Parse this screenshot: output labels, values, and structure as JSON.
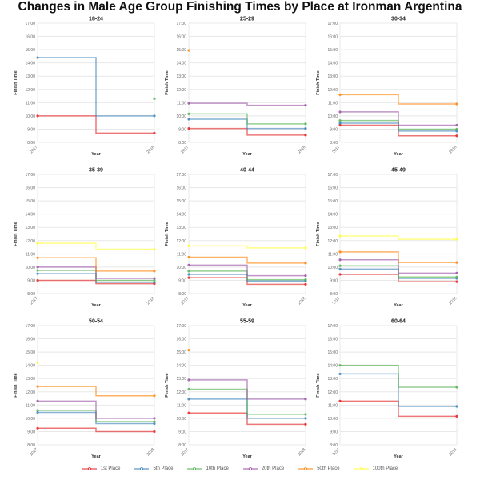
{
  "chart_data": {
    "type": "line",
    "title": "Changes in Male Age Group Finishing Times by Place at Ironman Argentina",
    "xlabel": "Year",
    "ylabel": "Finish Time",
    "x": [
      "2017",
      "2018"
    ],
    "ylim": [
      8,
      17
    ],
    "y_units": "hours",
    "yticks": [
      "8:00",
      "9:00",
      "10:00",
      "11:00",
      "12:00",
      "13:00",
      "14:00",
      "15:00",
      "16:00",
      "17:00"
    ],
    "step": "middle",
    "grid": true,
    "legend_placement": "bottom",
    "series_names": [
      "1st Place",
      "5th Place",
      "10th Place",
      "20th Place",
      "50th Place",
      "100th Place"
    ],
    "colors": [
      "#e41a1c",
      "#377eb8",
      "#4daf4a",
      "#984ea3",
      "#ff7f00",
      "#ffff33"
    ],
    "panels": [
      {
        "title": "18-24",
        "series": [
          [
            10.0,
            8.7
          ],
          [
            14.4,
            10.0
          ],
          [
            null,
            11.3
          ],
          [
            null,
            null
          ],
          [
            null,
            null
          ],
          [
            null,
            null
          ]
        ]
      },
      {
        "title": "25-29",
        "series": [
          [
            9.05,
            8.55
          ],
          [
            9.75,
            9.05
          ],
          [
            10.15,
            9.4
          ],
          [
            10.95,
            10.8
          ],
          [
            14.95,
            null
          ],
          [
            null,
            null
          ]
        ]
      },
      {
        "title": "30-34",
        "series": [
          [
            9.3,
            8.5
          ],
          [
            9.45,
            8.85
          ],
          [
            9.65,
            9.0
          ],
          [
            10.3,
            9.3
          ],
          [
            11.6,
            10.9
          ],
          [
            null,
            null
          ]
        ]
      },
      {
        "title": "35-39",
        "series": [
          [
            9.0,
            8.75
          ],
          [
            9.5,
            8.85
          ],
          [
            9.75,
            9.0
          ],
          [
            10.0,
            9.15
          ],
          [
            10.7,
            9.7
          ],
          [
            11.8,
            11.35
          ]
        ]
      },
      {
        "title": "40-44",
        "series": [
          [
            9.2,
            8.7
          ],
          [
            9.45,
            8.95
          ],
          [
            9.7,
            9.05
          ],
          [
            10.15,
            9.35
          ],
          [
            10.75,
            10.3
          ],
          [
            11.6,
            11.45
          ]
        ]
      },
      {
        "title": "45-49",
        "series": [
          [
            9.45,
            8.9
          ],
          [
            9.85,
            9.15
          ],
          [
            10.1,
            9.25
          ],
          [
            10.55,
            9.55
          ],
          [
            11.15,
            10.35
          ],
          [
            12.35,
            12.1
          ]
        ]
      },
      {
        "title": "50-54",
        "series": [
          [
            9.25,
            9.0
          ],
          [
            10.45,
            9.6
          ],
          [
            10.6,
            9.75
          ],
          [
            11.3,
            10.0
          ],
          [
            12.4,
            11.7
          ],
          [
            14.2,
            null
          ]
        ]
      },
      {
        "title": "55-59",
        "series": [
          [
            10.4,
            9.55
          ],
          [
            11.45,
            10.0
          ],
          [
            12.2,
            10.3
          ],
          [
            12.9,
            11.45
          ],
          [
            15.15,
            null
          ],
          [
            null,
            null
          ]
        ]
      },
      {
        "title": "60-64",
        "series": [
          [
            11.3,
            10.15
          ],
          [
            13.35,
            10.9
          ],
          [
            14.0,
            12.35
          ],
          [
            null,
            null
          ],
          [
            null,
            null
          ],
          [
            null,
            null
          ]
        ]
      }
    ]
  }
}
